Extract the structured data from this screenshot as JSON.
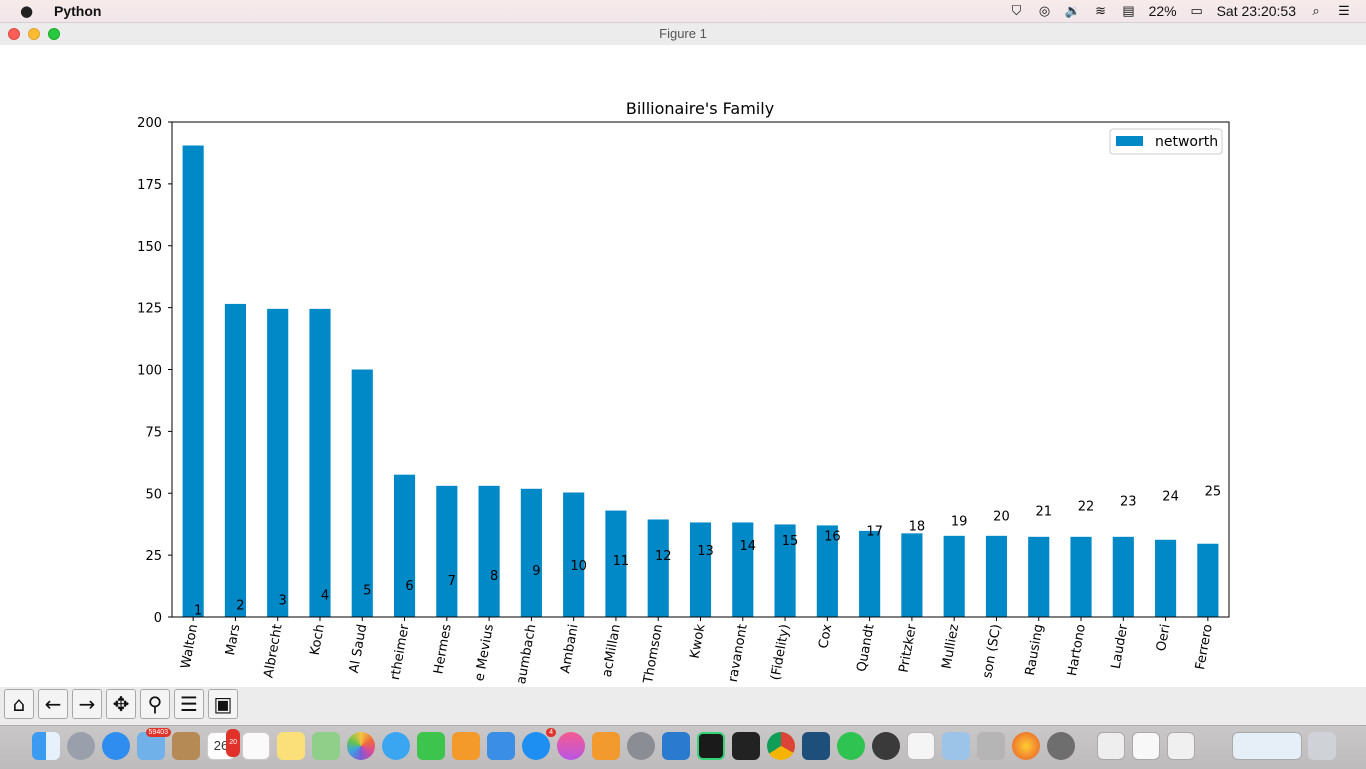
{
  "menubar": {
    "app_name": "Python",
    "battery": "22%",
    "clock": "Sat 23:20:53",
    "icons": [
      "shield-icon",
      "accessibility-icon",
      "volume-icon",
      "wifi-icon",
      "flag-icon",
      "battery-icon",
      "search-icon",
      "list-icon"
    ]
  },
  "window": {
    "title": "Figure 1"
  },
  "toolbar": {
    "buttons": [
      {
        "name": "home-icon",
        "glyph": "⌂"
      },
      {
        "name": "back-arrow-icon",
        "glyph": "←"
      },
      {
        "name": "forward-arrow-icon",
        "glyph": "→"
      },
      {
        "name": "pan-icon",
        "glyph": "✥"
      },
      {
        "name": "zoom-icon",
        "glyph": "⚲"
      },
      {
        "name": "configure-subplots-icon",
        "glyph": "☰"
      },
      {
        "name": "save-icon",
        "glyph": "▣"
      }
    ]
  },
  "dock": {
    "badges": {
      "mail": "59403",
      "calendar_month": "SEP",
      "calendar_day": "26",
      "calendar_badge": "20",
      "appstore": "4"
    },
    "apps": [
      "finder",
      "launchpad",
      "safari",
      "mail",
      "contacts",
      "calendar",
      "reminders",
      "notes",
      "maps",
      "photos",
      "messages",
      "facetime",
      "pages",
      "keynote",
      "appstore",
      "music",
      "books",
      "system-preferences",
      "vscode",
      "pycharm",
      "terminal",
      "chrome",
      "mysql-workbench",
      "whatsapp",
      "evernote",
      "textedit",
      "preview",
      "keychain",
      "firefox",
      "inkscape",
      "downloads",
      "documents",
      "files",
      "trash"
    ]
  },
  "chart_data": {
    "type": "bar",
    "title": "Billionaire's Family",
    "legend": {
      "labels": [
        "networth"
      ],
      "position": "top-right"
    },
    "color": "#0089c6",
    "ylim": [
      0,
      200
    ],
    "yticks": [
      0,
      25,
      50,
      75,
      100,
      125,
      150,
      175,
      200
    ],
    "categories": [
      "Walton",
      "Mars",
      "Albrecht",
      "Koch",
      "Al Saud",
      "rtheimer",
      "Hermes",
      "e Mevius",
      "aumbach",
      "Ambani",
      "acMillan",
      "Thomson",
      "Kwok",
      "ravanont",
      "(Fidelity)",
      "Cox",
      "Quandt",
      "Pritzker",
      "Mulliez",
      "son (SC)",
      "Rausing",
      "Hartono",
      "Lauder",
      "Oeri",
      "Ferrero"
    ],
    "series": [
      {
        "values": [
          190.5,
          126.5,
          124.5,
          124.5,
          100,
          57.5,
          53,
          53,
          51.8,
          50.3,
          43,
          39.4,
          38.2,
          38.2,
          37.4,
          37,
          34.8,
          33.8,
          32.8,
          32.8,
          32.4,
          32.4,
          32.4,
          31.2,
          29.6
        ]
      }
    ],
    "bar_labels": [
      "1",
      "2",
      "3",
      "4",
      "5",
      "6",
      "7",
      "8",
      "9",
      "10",
      "11",
      "12",
      "13",
      "14",
      "15",
      "16",
      "17",
      "18",
      "19",
      "20",
      "21",
      "22",
      "23",
      "24",
      "25"
    ],
    "bar_label_y": [
      1,
      3,
      5,
      7,
      9,
      11,
      13,
      15,
      17,
      19,
      21,
      23,
      25,
      27,
      29,
      31,
      33,
      35,
      37,
      39,
      41,
      43,
      45,
      47,
      49
    ]
  }
}
